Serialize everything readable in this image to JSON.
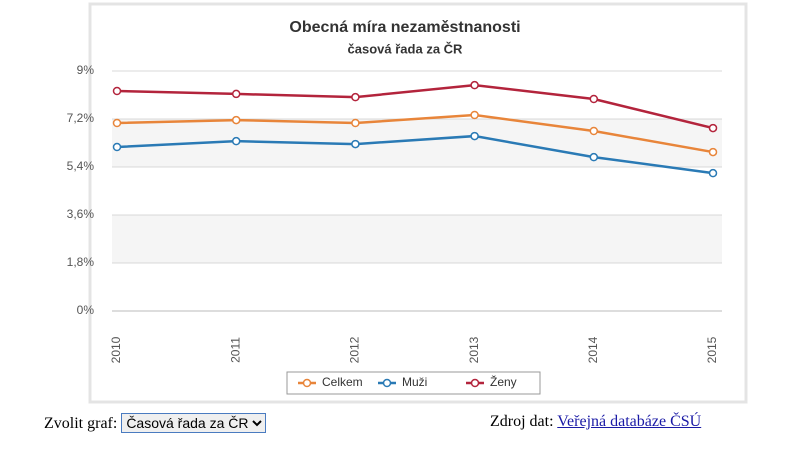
{
  "chart_data": {
    "type": "line",
    "title": "Obecná míra nezaměstnanosti",
    "subtitle": "časová řada za ČR",
    "categories": [
      "2010",
      "2011",
      "2012",
      "2013",
      "2014",
      "2015"
    ],
    "series": [
      {
        "name": "Celkem",
        "color": "#e8853a",
        "values": [
          7.05,
          7.16,
          7.05,
          7.35,
          6.75,
          5.96
        ]
      },
      {
        "name": "Muži",
        "color": "#2a7ab5",
        "values": [
          6.15,
          6.37,
          6.26,
          6.56,
          5.77,
          5.17
        ]
      },
      {
        "name": "Ženy",
        "color": "#b3243c",
        "values": [
          8.25,
          8.14,
          8.02,
          8.47,
          7.95,
          6.86
        ]
      }
    ],
    "ylim": [
      0,
      9
    ],
    "yticks": [
      {
        "value": 0,
        "label": "0%"
      },
      {
        "value": 1.8,
        "label": "1,8%"
      },
      {
        "value": 3.6,
        "label": "3,6%"
      },
      {
        "value": 5.4,
        "label": "5,4%"
      },
      {
        "value": 7.2,
        "label": "7,2%"
      },
      {
        "value": 9,
        "label": "9%"
      }
    ],
    "grid": true,
    "legend": "bottom"
  },
  "footer": {
    "select_label": "Zvolit graf:",
    "select_value": "Časová řada za ČR",
    "source_label": "Zdroj dat:",
    "source_link": "Veřejná databáze ČSÚ"
  }
}
